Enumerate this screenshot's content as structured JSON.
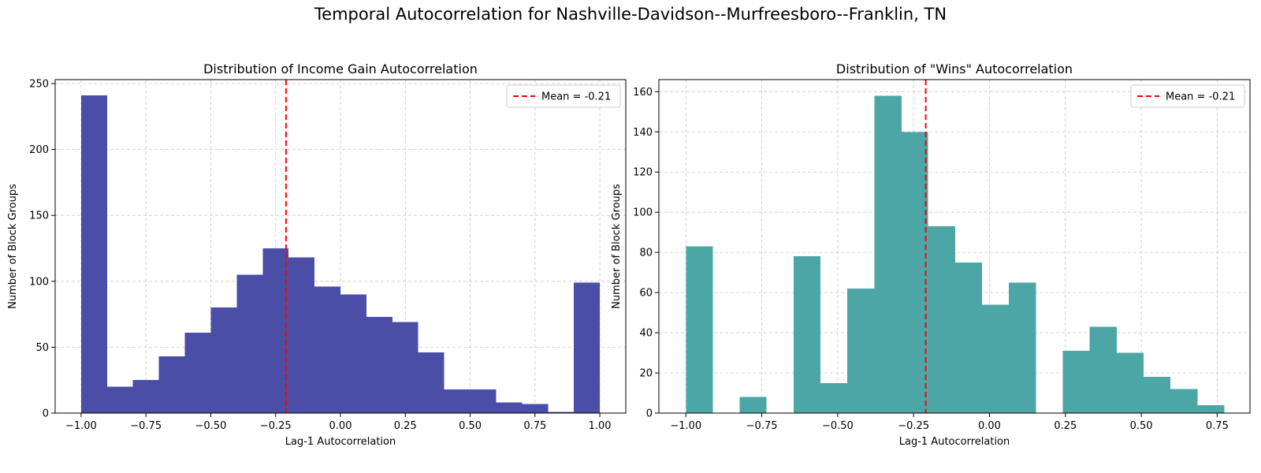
{
  "suptitle": "Temporal Autocorrelation for Nashville-Davidson--Murfreesboro--Franklin, TN",
  "chart_data": [
    {
      "type": "bar",
      "title": "Distribution of Income Gain Autocorrelation",
      "xlabel": "Lag-1 Autocorrelation",
      "ylabel": "Number of Block Groups",
      "xlim": [
        -1.1,
        1.1
      ],
      "ylim": [
        0,
        253
      ],
      "xticks": [
        -1.0,
        -0.75,
        -0.5,
        -0.25,
        0.0,
        0.25,
        0.5,
        0.75,
        1.0
      ],
      "xtick_labels": [
        "−1.00",
        "−0.75",
        "−0.50",
        "−0.25",
        "0.00",
        "0.25",
        "0.50",
        "0.75",
        "1.00"
      ],
      "yticks": [
        0,
        50,
        100,
        150,
        200,
        250
      ],
      "ytick_labels": [
        "0",
        "50",
        "100",
        "150",
        "200",
        "250"
      ],
      "bin_edges": [
        -1.0,
        -0.9,
        -0.8,
        -0.7,
        -0.6,
        -0.5,
        -0.4,
        -0.3,
        -0.2,
        -0.1,
        0.0,
        0.1,
        0.2,
        0.3,
        0.4,
        0.5,
        0.6,
        0.7,
        0.8,
        0.9,
        1.0
      ],
      "values": [
        241,
        20,
        25,
        43,
        61,
        80,
        105,
        125,
        118,
        96,
        90,
        73,
        69,
        46,
        18,
        18,
        8,
        7,
        1,
        99
      ],
      "bar_color": "#4b4ea6",
      "mean": -0.21,
      "mean_label": "Mean = -0.21",
      "mean_color": "#ff0000",
      "legend_position": "upper right",
      "grid": true
    },
    {
      "type": "bar",
      "title": "Distribution of \"Wins\" Autocorrelation",
      "xlabel": "Lag-1 Autocorrelation",
      "ylabel": "Number of Block Groups",
      "xlim": [
        -1.089,
        0.858
      ],
      "ylim": [
        0,
        166
      ],
      "xticks": [
        -1.0,
        -0.75,
        -0.5,
        -0.25,
        0.0,
        0.25,
        0.5,
        0.75
      ],
      "xtick_labels": [
        "−1.00",
        "−0.75",
        "−0.50",
        "−0.25",
        "0.00",
        "0.25",
        "0.50",
        "0.75"
      ],
      "yticks": [
        0,
        20,
        40,
        60,
        80,
        100,
        120,
        140,
        160
      ],
      "ytick_labels": [
        "0",
        "20",
        "40",
        "60",
        "80",
        "100",
        "120",
        "140",
        "160"
      ],
      "bin_edges": [
        -1.0,
        -0.911,
        -0.823,
        -0.734,
        -0.645,
        -0.557,
        -0.468,
        -0.379,
        -0.29,
        -0.202,
        -0.113,
        -0.024,
        0.064,
        0.153,
        0.241,
        0.33,
        0.419,
        0.507,
        0.596,
        0.685,
        0.773
      ],
      "values": [
        83,
        0,
        8,
        0,
        78,
        15,
        62,
        158,
        140,
        93,
        75,
        54,
        65,
        0,
        31,
        43,
        30,
        18,
        12,
        4
      ],
      "bar_color": "#4ca6a6",
      "mean": -0.21,
      "mean_label": "Mean = -0.21",
      "mean_color": "#ff0000",
      "legend_position": "upper right",
      "grid": true
    }
  ]
}
